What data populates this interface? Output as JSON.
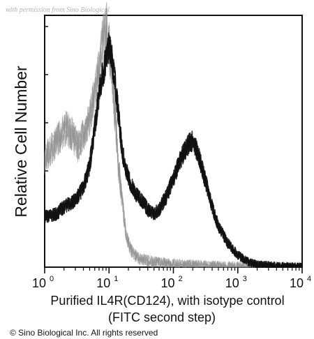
{
  "watermark": "with permission from Sino Biological",
  "copyright": "© Sino Biological Inc. All rights reserved",
  "chart_data": {
    "type": "area",
    "title": "",
    "ylabel": "Relative Cell Number",
    "xlabel_line1": "Purified IL4R(CD124), with isotype control",
    "xlabel_line2": "(FITC second step)",
    "x_scale": "log",
    "xlim": [
      1,
      10000
    ],
    "ylim": [
      0,
      100
    ],
    "x_ticks": [
      {
        "base": "10",
        "exp": "0"
      },
      {
        "base": "10",
        "exp": "1"
      },
      {
        "base": "10",
        "exp": "2"
      },
      {
        "base": "10",
        "exp": "3"
      },
      {
        "base": "10",
        "exp": "4"
      }
    ],
    "grid": false,
    "series": [
      {
        "color": "#8c8c8c",
        "style": "noisy gray",
        "x": [
          1,
          1.2,
          1.5,
          1.8,
          2.2,
          2.7,
          3.3,
          4,
          5,
          6,
          7,
          8,
          9,
          10,
          11,
          12.5,
          14,
          16,
          18,
          20,
          22,
          25,
          30,
          40,
          60,
          100,
          200,
          400,
          1000,
          10000
        ],
        "y": [
          45,
          48,
          52,
          55,
          58,
          55,
          50,
          55,
          62,
          72,
          83,
          94,
          100,
          93,
          82,
          62,
          42,
          27,
          16,
          10,
          7,
          5,
          3.5,
          2.5,
          1.8,
          1.2,
          0.8,
          0.4,
          0.2,
          0
        ]
      },
      {
        "color": "#111111",
        "style": "noisy black",
        "x": [
          1,
          1.5,
          2,
          3,
          4,
          5,
          6,
          7,
          8,
          9,
          10,
          11,
          12,
          14,
          16,
          20,
          25,
          30,
          40,
          50,
          60,
          80,
          100,
          130,
          160,
          200,
          250,
          300,
          400,
          500,
          700,
          1000,
          1500,
          2000,
          10000
        ],
        "y": [
          21,
          22,
          25,
          28,
          33,
          42,
          58,
          72,
          80,
          86,
          92,
          87,
          80,
          64,
          48,
          37,
          31,
          29,
          24,
          22,
          24,
          30,
          37,
          45,
          50,
          53,
          46,
          38,
          25,
          17,
          10,
          5,
          2,
          1,
          0
        ]
      }
    ]
  }
}
